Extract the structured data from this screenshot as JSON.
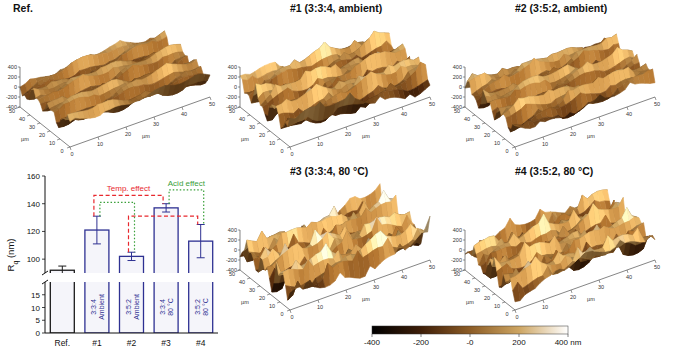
{
  "chart_data": {
    "type": "bar",
    "categories": [
      "Ref.",
      "#1",
      "#2",
      "#3",
      "#4"
    ],
    "values": [
      92,
      121,
      102,
      137,
      113
    ],
    "errors": [
      3,
      10,
      3,
      3,
      12
    ],
    "colors": [
      "#1a1a1a",
      "#2e3192",
      "#2e3192",
      "#2e3192",
      "#2e3192"
    ],
    "bar_labels": [
      null,
      [
        "3:3:4",
        "Ambient"
      ],
      [
        "3:5:2",
        "Ambient"
      ],
      [
        "3:3:4",
        "80 °C"
      ],
      [
        "3:5:2",
        "80 °C"
      ]
    ],
    "ylabel": "Rq (nm)",
    "ylim": [
      0,
      160
    ],
    "y_break": [
      20,
      90
    ],
    "yticks": [
      0,
      5,
      10,
      15,
      100,
      120,
      140,
      160
    ],
    "annotations": [
      {
        "text": "Temp. effect",
        "color": "#e8282e",
        "line_style": "dashed",
        "pairs": [
          [
            1,
            3
          ],
          [
            2,
            4
          ]
        ]
      },
      {
        "text": "Acid effect",
        "color": "#3aa03a",
        "line_style": "dotted",
        "pairs": [
          [
            1,
            2
          ],
          [
            3,
            4
          ]
        ]
      }
    ]
  },
  "images": [
    {
      "title": "Ref."
    },
    {
      "title": "#1 (3:3:4, ambient)"
    },
    {
      "title": "#2 (3:5:2, ambient)"
    },
    {
      "title": "#3 (3:3:4, 80 °C)"
    },
    {
      "title": "#4 (3:5:2, 80 °C)"
    }
  ],
  "surface_axes": {
    "xy_ticks": [
      0,
      10,
      20,
      30,
      40,
      50
    ],
    "xy_unit": "µm",
    "z_ticks": [
      -400,
      -200,
      0,
      200,
      400
    ]
  },
  "colorbar": {
    "range": [
      -400,
      400
    ],
    "ticks": [
      -400,
      -200,
      {
        "value": 0,
        "label": "-0"
      },
      200,
      {
        "value": 400,
        "label": "400 nm"
      }
    ]
  }
}
